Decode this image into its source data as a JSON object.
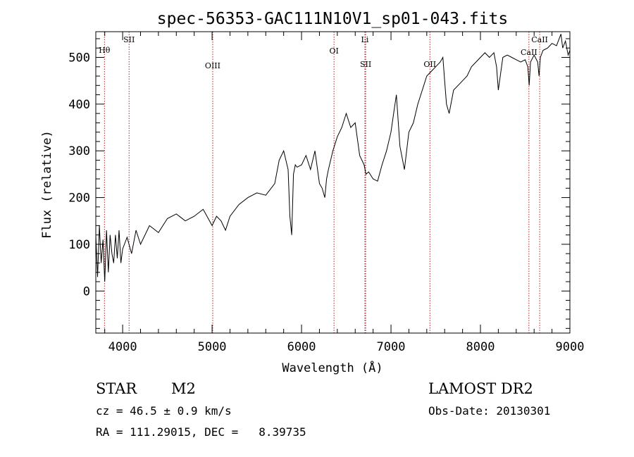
{
  "chart_data": {
    "type": "line",
    "title": "spec-56353-GAC111N10V1_sp01-043.fits",
    "xlabel": "Wavelength (Å)",
    "ylabel": "Flux (relative)",
    "xlim": [
      3700,
      9000
    ],
    "ylim": [
      -90,
      555
    ],
    "x_ticks": [
      4000,
      5000,
      6000,
      7000,
      8000,
      9000
    ],
    "x_tick_labels": [
      "4000",
      "5000",
      "6000",
      "7000",
      "8000",
      "9000"
    ],
    "y_ticks": [
      0,
      100,
      200,
      300,
      400,
      500
    ],
    "y_tick_labels": [
      "0",
      "100",
      "200",
      "300",
      "400",
      "500"
    ],
    "grid": false,
    "series": [
      {
        "color": "#000000",
        "x": [
          3700,
          3720,
          3740,
          3760,
          3780,
          3800,
          3820,
          3840,
          3860,
          3880,
          3900,
          3920,
          3940,
          3960,
          3980,
          4000,
          4050,
          4100,
          4150,
          4200,
          4300,
          4400,
          4500,
          4600,
          4700,
          4800,
          4900,
          5000,
          5050,
          5100,
          5150,
          5200,
          5300,
          5400,
          5500,
          5600,
          5700,
          5750,
          5800,
          5850,
          5870,
          5890,
          5910,
          5930,
          5950,
          6000,
          6050,
          6100,
          6150,
          6200,
          6230,
          6260,
          6280,
          6300,
          6350,
          6400,
          6450,
          6500,
          6550,
          6600,
          6650,
          6700,
          6720,
          6750,
          6800,
          6850,
          6900,
          6950,
          7000,
          7030,
          7060,
          7100,
          7150,
          7200,
          7250,
          7300,
          7350,
          7400,
          7450,
          7500,
          7550,
          7580,
          7600,
          7620,
          7650,
          7700,
          7750,
          7800,
          7850,
          7900,
          7950,
          8000,
          8050,
          8100,
          8150,
          8180,
          8200,
          8250,
          8300,
          8350,
          8400,
          8450,
          8500,
          8530,
          8545,
          8560,
          8600,
          8640,
          8655,
          8670,
          8700,
          8750,
          8800,
          8850,
          8900,
          8920,
          8950,
          8980,
          9000
        ],
        "y": [
          120,
          30,
          140,
          60,
          110,
          20,
          130,
          40,
          120,
          80,
          60,
          120,
          70,
          130,
          60,
          90,
          115,
          80,
          130,
          100,
          140,
          125,
          155,
          165,
          150,
          160,
          175,
          140,
          160,
          150,
          130,
          160,
          185,
          200,
          210,
          205,
          230,
          280,
          300,
          260,
          160,
          120,
          250,
          270,
          265,
          270,
          290,
          260,
          300,
          230,
          220,
          200,
          240,
          260,
          300,
          330,
          350,
          380,
          350,
          360,
          290,
          270,
          250,
          255,
          240,
          235,
          270,
          300,
          340,
          380,
          420,
          310,
          260,
          340,
          360,
          400,
          430,
          460,
          470,
          480,
          490,
          500,
          450,
          400,
          380,
          430,
          440,
          450,
          460,
          480,
          490,
          500,
          510,
          500,
          510,
          480,
          430,
          500,
          505,
          500,
          495,
          490,
          495,
          480,
          440,
          490,
          505,
          490,
          460,
          500,
          515,
          520,
          530,
          525,
          550,
          520,
          535,
          505,
          515
        ]
      }
    ],
    "annotations": [
      {
        "label": "Hθ",
        "x": 3797
      },
      {
        "label": "SII",
        "x": 4072
      },
      {
        "label": "OIII",
        "x": 5007
      },
      {
        "label": "OI",
        "x": 6363
      },
      {
        "label": "Li",
        "x": 6708
      },
      {
        "label": "SII",
        "x": 6717
      },
      {
        "label": "OII",
        "x": 7435
      },
      {
        "label": "CaII",
        "x": 8542
      },
      {
        "label": "CaII",
        "x": 8662
      }
    ]
  },
  "info": {
    "class": "STAR",
    "subclass": "M2",
    "survey": "LAMOST DR2",
    "cz": "cz = 46.5 ± 0.9 km/s",
    "obs_date": "Obs-Date: 20130301",
    "coords": "RA = 111.29015, DEC =   8.39735"
  }
}
